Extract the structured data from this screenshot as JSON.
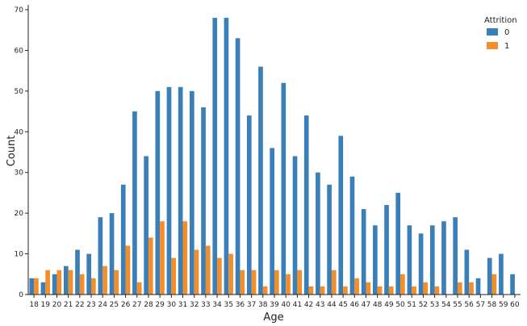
{
  "chart_data": {
    "type": "bar",
    "title": "",
    "xlabel": "Age",
    "ylabel": "Count",
    "ylim": [
      0,
      70
    ],
    "yticks": [
      0,
      10,
      20,
      30,
      40,
      50,
      60,
      70
    ],
    "grid": false,
    "legend": {
      "title": "Attrition",
      "position": "top-right"
    },
    "categories": [
      "18",
      "19",
      "20",
      "21",
      "22",
      "23",
      "24",
      "25",
      "26",
      "27",
      "28",
      "29",
      "30",
      "31",
      "32",
      "33",
      "34",
      "35",
      "36",
      "37",
      "38",
      "39",
      "40",
      "41",
      "42",
      "43",
      "44",
      "45",
      "46",
      "47",
      "48",
      "49",
      "50",
      "51",
      "52",
      "53",
      "54",
      "55",
      "56",
      "57",
      "58",
      "59",
      "60"
    ],
    "series": [
      {
        "name": "0",
        "color": "#3a7fb8",
        "values": [
          4,
          3,
          5,
          7,
          11,
          10,
          19,
          20,
          27,
          45,
          34,
          50,
          51,
          51,
          50,
          46,
          68,
          68,
          63,
          44,
          56,
          36,
          52,
          34,
          44,
          30,
          27,
          39,
          29,
          21,
          17,
          22,
          25,
          17,
          15,
          17,
          18,
          19,
          11,
          4,
          9,
          10,
          5
        ]
      },
      {
        "name": "1",
        "color": "#f28e2b",
        "values": [
          4,
          6,
          6,
          6,
          5,
          4,
          7,
          6,
          12,
          3,
          14,
          18,
          9,
          18,
          11,
          12,
          9,
          10,
          6,
          6,
          2,
          6,
          5,
          6,
          2,
          2,
          6,
          2,
          4,
          3,
          2,
          2,
          5,
          2,
          3,
          2,
          0,
          3,
          3,
          0,
          5,
          0,
          0
        ]
      }
    ]
  }
}
